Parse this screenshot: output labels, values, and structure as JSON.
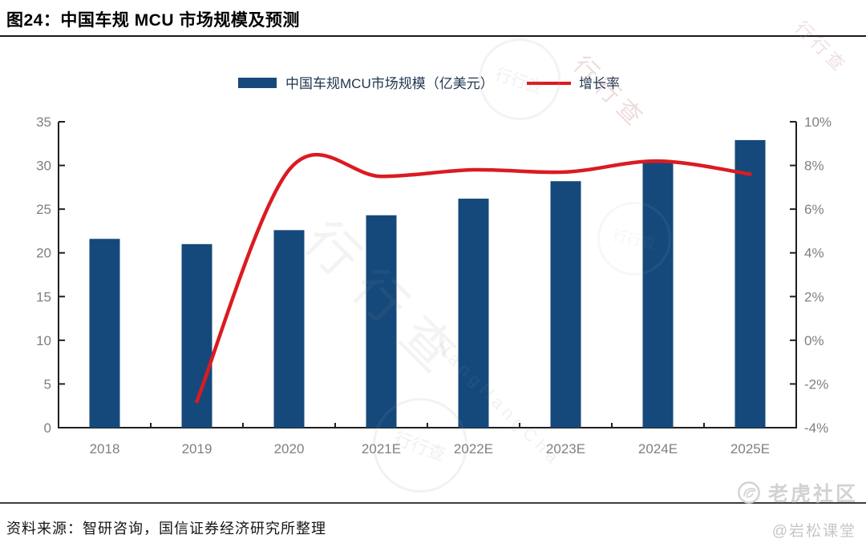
{
  "header": {
    "title": "图24：中国车规 MCU 市场规模及预测"
  },
  "footer": {
    "source": "资料来源：智研咨询，国信证券经济研究所整理"
  },
  "branding": {
    "community_name": "老虎社区",
    "author_handle": "@岩松课堂"
  },
  "watermarks": {
    "site_name_cn": "行行查",
    "site_name_en": "HangHangCha"
  },
  "chart_data": {
    "type": "bar",
    "subtype": "combo-bar-line",
    "title": "",
    "categories": [
      "2018",
      "2019",
      "2020",
      "2021E",
      "2022E",
      "2023E",
      "2024E",
      "2025E"
    ],
    "series": [
      {
        "name": "中国车规MCU市场规模（亿美元）",
        "type": "bar",
        "axis": "left",
        "color": "#15497B",
        "values": [
          21.6,
          21.0,
          22.6,
          24.3,
          26.2,
          28.2,
          30.4,
          32.9
        ]
      },
      {
        "name": "增长率",
        "type": "line",
        "axis": "right",
        "color": "#DB1B21",
        "values": [
          null,
          -2.8,
          7.8,
          7.5,
          7.8,
          7.7,
          8.2,
          7.6
        ]
      }
    ],
    "left_axis": {
      "min": 0,
      "max": 35,
      "step": 5,
      "tick_labels": [
        "0",
        "5",
        "10",
        "15",
        "20",
        "25",
        "30",
        "35"
      ]
    },
    "right_axis": {
      "min": -4,
      "max": 10,
      "step": 2,
      "tick_labels": [
        "-4%",
        "-2%",
        "0%",
        "2%",
        "4%",
        "6%",
        "8%",
        "10%"
      ]
    },
    "legend_position": "top",
    "grid": false,
    "axis_label_color": "#7F7F7F",
    "axis_line_color": "#1F1F1F",
    "legend_text_color": "#1F3550"
  }
}
